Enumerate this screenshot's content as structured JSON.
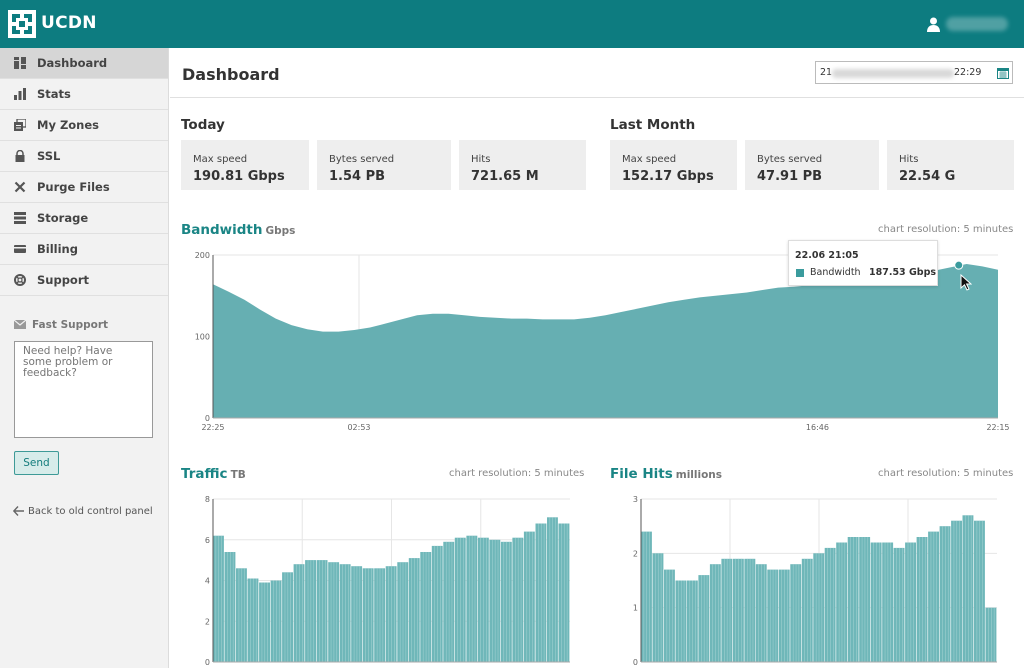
{
  "app": {
    "brand": "UCDN",
    "theme_color": "#0d7c80"
  },
  "header": {
    "user_icon": "user-icon"
  },
  "sidebar": {
    "items": [
      {
        "label": "Dashboard",
        "icon": "dashboard-icon",
        "active": true
      },
      {
        "label": "Stats",
        "icon": "bar-chart-icon"
      },
      {
        "label": "My Zones",
        "icon": "zones-icon"
      },
      {
        "label": "SSL",
        "icon": "lock-icon"
      },
      {
        "label": "Purge Files",
        "icon": "close-x-icon"
      },
      {
        "label": "Storage",
        "icon": "storage-icon"
      },
      {
        "label": "Billing",
        "icon": "credit-card-icon"
      },
      {
        "label": "Support",
        "icon": "lifebuoy-icon"
      }
    ],
    "fast_support": {
      "title": "Fast Support",
      "placeholder": "Need help? Have some problem or feedback?",
      "send_label": "Send"
    },
    "back_link": "Back to old control panel"
  },
  "page": {
    "title": "Dashboard",
    "date_range": {
      "start_visible": "21",
      "end_visible": "22:29",
      "icon": "calendar-icon"
    }
  },
  "today": {
    "title": "Today",
    "stats": [
      {
        "label": "Max speed",
        "value": "190.81 Gbps"
      },
      {
        "label": "Bytes served",
        "value": "1.54 PB"
      },
      {
        "label": "Hits",
        "value": "721.65 M"
      }
    ]
  },
  "last_month": {
    "title": "Last Month",
    "stats": [
      {
        "label": "Max speed",
        "value": "152.17 Gbps"
      },
      {
        "label": "Bytes served",
        "value": "47.91 PB"
      },
      {
        "label": "Hits",
        "value": "22.54 G"
      }
    ]
  },
  "bandwidth": {
    "title": "Bandwidth",
    "unit": "Gbps",
    "resolution": "chart resolution: 5 minutes",
    "tooltip": {
      "time": "22.06 21:05",
      "series": "Bandwidth",
      "value": "187.53 Gbps"
    }
  },
  "traffic": {
    "title": "Traffic",
    "unit": "TB",
    "resolution": "chart resolution: 5 minutes"
  },
  "filehits": {
    "title": "File Hits",
    "unit": "millions",
    "resolution": "chart resolution: 5 minutes"
  },
  "chart_data": [
    {
      "type": "area",
      "title": "Bandwidth",
      "ylabel": "Gbps",
      "ylim": [
        0,
        200
      ],
      "yticks": [
        "0",
        "100",
        "200"
      ],
      "xticks": [
        "22:25",
        "02:53",
        "16:46",
        "22:15"
      ],
      "xtick_pos": [
        0,
        0.186,
        0.77,
        1.0
      ],
      "x": [
        0,
        0.02,
        0.04,
        0.06,
        0.08,
        0.1,
        0.12,
        0.14,
        0.16,
        0.18,
        0.2,
        0.22,
        0.24,
        0.26,
        0.28,
        0.3,
        0.32,
        0.34,
        0.36,
        0.38,
        0.4,
        0.42,
        0.44,
        0.46,
        0.48,
        0.5,
        0.52,
        0.54,
        0.56,
        0.58,
        0.6,
        0.62,
        0.64,
        0.66,
        0.68,
        0.7,
        0.72,
        0.74,
        0.76,
        0.78,
        0.8,
        0.82,
        0.84,
        0.86,
        0.88,
        0.9,
        0.92,
        0.94,
        0.96,
        0.98,
        1.0
      ],
      "values": [
        164,
        155,
        145,
        133,
        122,
        114,
        109,
        106,
        106,
        108,
        111,
        116,
        121,
        126,
        128,
        128,
        126,
        124,
        123,
        122,
        122,
        121,
        121,
        121,
        123,
        126,
        130,
        134,
        138,
        142,
        145,
        148,
        150,
        152,
        154,
        157,
        160,
        161,
        163,
        166,
        168,
        170,
        172,
        174,
        176,
        178,
        181,
        185,
        189,
        186,
        182
      ],
      "highlight": {
        "x": 0.95,
        "y": 187.53
      }
    },
    {
      "type": "bar",
      "title": "Traffic",
      "ylabel": "TB",
      "ylim": [
        0,
        8
      ],
      "yticks": [
        "0",
        "2",
        "4",
        "6",
        "8"
      ],
      "x": [
        0,
        0.033,
        0.067,
        0.1,
        0.133,
        0.167,
        0.2,
        0.233,
        0.267,
        0.3,
        0.333,
        0.367,
        0.4,
        0.433,
        0.467,
        0.5,
        0.533,
        0.567,
        0.6,
        0.633,
        0.667,
        0.7,
        0.733,
        0.767,
        0.8,
        0.833,
        0.867,
        0.9,
        0.933,
        0.967,
        1.0
      ],
      "values": [
        6.2,
        5.4,
        4.6,
        4.1,
        3.9,
        4.0,
        4.4,
        4.8,
        5.0,
        5.0,
        4.9,
        4.8,
        4.7,
        4.6,
        4.6,
        4.7,
        4.9,
        5.1,
        5.4,
        5.7,
        5.9,
        6.1,
        6.2,
        6.1,
        6.0,
        5.9,
        6.1,
        6.4,
        6.8,
        7.1,
        6.8
      ]
    },
    {
      "type": "bar",
      "title": "File Hits",
      "ylabel": "millions",
      "ylim": [
        0,
        3
      ],
      "yticks": [
        "0",
        "1",
        "2",
        "3"
      ],
      "x": [
        0,
        0.033,
        0.067,
        0.1,
        0.133,
        0.167,
        0.2,
        0.233,
        0.267,
        0.3,
        0.333,
        0.367,
        0.4,
        0.433,
        0.467,
        0.5,
        0.533,
        0.567,
        0.6,
        0.633,
        0.667,
        0.7,
        0.733,
        0.767,
        0.8,
        0.833,
        0.867,
        0.9,
        0.933,
        0.967,
        1.0
      ],
      "values": [
        2.4,
        2.0,
        1.7,
        1.5,
        1.5,
        1.6,
        1.8,
        1.9,
        1.9,
        1.9,
        1.8,
        1.7,
        1.7,
        1.8,
        1.9,
        2.0,
        2.1,
        2.2,
        2.3,
        2.3,
        2.2,
        2.2,
        2.1,
        2.2,
        2.3,
        2.4,
        2.5,
        2.6,
        2.7,
        2.6,
        1.0
      ]
    }
  ]
}
